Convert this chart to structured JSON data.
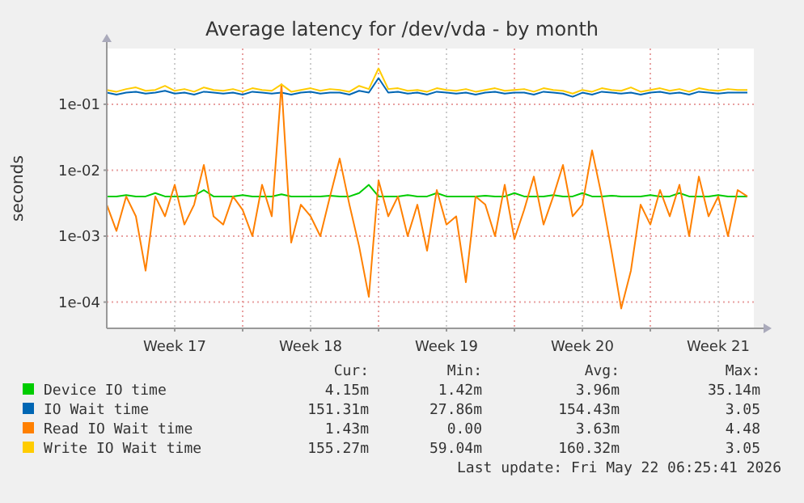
{
  "chart_data": {
    "type": "line",
    "title": "Average latency for /dev/vda - by month",
    "ylabel": "seconds",
    "log": "y",
    "grid": true,
    "legend": "bottom",
    "marker": "none",
    "line_style": "solid",
    "xlim": [
      "2026-04-20T00:00",
      "2026-05-23T08:00"
    ],
    "xticks": [
      {
        "value": "2026-04-23T12:00",
        "label": "Week 17"
      },
      {
        "value": "2026-04-27T00:00",
        "label": null
      },
      {
        "value": "2026-04-30T12:00",
        "label": "Week 18"
      },
      {
        "value": "2026-05-04T00:00",
        "label": null
      },
      {
        "value": "2026-05-07T12:00",
        "label": "Week 19"
      },
      {
        "value": "2026-05-11T00:00",
        "label": null
      },
      {
        "value": "2026-05-14T12:00",
        "label": "Week 20"
      },
      {
        "value": "2026-05-18T00:00",
        "label": null
      },
      {
        "value": "2026-05-21T12:00",
        "label": "Week 21"
      }
    ],
    "ylim": [
      4e-05,
      0.7
    ],
    "yticks": [
      {
        "value": 0.1,
        "label": "1e-01"
      },
      {
        "value": 0.01,
        "label": "1e-02"
      },
      {
        "value": 0.001,
        "label": "1e-03"
      },
      {
        "value": 0.0001,
        "label": "1e-04"
      }
    ],
    "x": [
      "2026-04-20T00:00",
      "2026-04-20T12:00",
      "2026-04-21T00:00",
      "2026-04-21T12:00",
      "2026-04-22T00:00",
      "2026-04-22T12:00",
      "2026-04-23T00:00",
      "2026-04-23T12:00",
      "2026-04-24T00:00",
      "2026-04-24T12:00",
      "2026-04-25T00:00",
      "2026-04-25T12:00",
      "2026-04-26T00:00",
      "2026-04-26T12:00",
      "2026-04-27T00:00",
      "2026-04-27T12:00",
      "2026-04-28T00:00",
      "2026-04-28T12:00",
      "2026-04-29T00:00",
      "2026-04-29T12:00",
      "2026-04-30T00:00",
      "2026-04-30T12:00",
      "2026-05-01T00:00",
      "2026-05-01T12:00",
      "2026-05-02T00:00",
      "2026-05-02T12:00",
      "2026-05-03T00:00",
      "2026-05-03T12:00",
      "2026-05-04T00:00",
      "2026-05-04T12:00",
      "2026-05-05T00:00",
      "2026-05-05T12:00",
      "2026-05-06T00:00",
      "2026-05-06T12:00",
      "2026-05-07T00:00",
      "2026-05-07T12:00",
      "2026-05-08T00:00",
      "2026-05-08T12:00",
      "2026-05-09T00:00",
      "2026-05-09T12:00",
      "2026-05-10T00:00",
      "2026-05-10T12:00",
      "2026-05-11T00:00",
      "2026-05-11T12:00",
      "2026-05-12T00:00",
      "2026-05-12T12:00",
      "2026-05-13T00:00",
      "2026-05-13T12:00",
      "2026-05-14T00:00",
      "2026-05-14T12:00",
      "2026-05-15T00:00",
      "2026-05-15T12:00",
      "2026-05-16T00:00",
      "2026-05-16T12:00",
      "2026-05-17T00:00",
      "2026-05-17T12:00",
      "2026-05-18T00:00",
      "2026-05-18T12:00",
      "2026-05-19T00:00",
      "2026-05-19T12:00",
      "2026-05-20T00:00",
      "2026-05-20T12:00",
      "2026-05-21T00:00",
      "2026-05-21T12:00",
      "2026-05-22T00:00",
      "2026-05-22T12:00",
      "2026-05-23T00:00"
    ],
    "series": [
      {
        "name": "Device IO time",
        "color": "#00cc00",
        "values": [
          0.004,
          0.004,
          0.0042,
          0.004,
          0.004,
          0.0045,
          0.004,
          0.004,
          0.004,
          0.0041,
          0.005,
          0.004,
          0.004,
          0.004,
          0.0042,
          0.004,
          0.004,
          0.004,
          0.0043,
          0.004,
          0.004,
          0.004,
          0.004,
          0.0041,
          0.004,
          0.004,
          0.0045,
          0.006,
          0.004,
          0.004,
          0.004,
          0.0042,
          0.004,
          0.004,
          0.0045,
          0.004,
          0.004,
          0.004,
          0.004,
          0.0041,
          0.004,
          0.004,
          0.0045,
          0.004,
          0.004,
          0.004,
          0.0042,
          0.004,
          0.004,
          0.0045,
          0.004,
          0.004,
          0.0041,
          0.004,
          0.004,
          0.004,
          0.0042,
          0.004,
          0.004,
          0.0045,
          0.004,
          0.004,
          0.004,
          0.0042,
          0.004,
          0.004,
          0.004
        ]
      },
      {
        "name": "IO Wait time",
        "color": "#0066b3",
        "values": [
          0.15,
          0.14,
          0.15,
          0.155,
          0.145,
          0.15,
          0.16,
          0.145,
          0.15,
          0.14,
          0.155,
          0.15,
          0.145,
          0.15,
          0.14,
          0.155,
          0.15,
          0.145,
          0.15,
          0.14,
          0.15,
          0.155,
          0.145,
          0.15,
          0.15,
          0.14,
          0.16,
          0.15,
          0.25,
          0.15,
          0.155,
          0.145,
          0.15,
          0.14,
          0.155,
          0.15,
          0.145,
          0.15,
          0.14,
          0.15,
          0.155,
          0.145,
          0.15,
          0.15,
          0.14,
          0.155,
          0.15,
          0.145,
          0.13,
          0.15,
          0.14,
          0.155,
          0.15,
          0.145,
          0.15,
          0.14,
          0.15,
          0.155,
          0.145,
          0.15,
          0.14,
          0.155,
          0.15,
          0.145,
          0.15,
          0.15,
          0.15
        ]
      },
      {
        "name": "Read IO Wait time",
        "color": "#ff8000",
        "values": [
          0.003,
          0.0012,
          0.004,
          0.002,
          0.0003,
          0.004,
          0.002,
          0.006,
          0.0015,
          0.003,
          0.012,
          0.002,
          0.0015,
          0.004,
          0.0025,
          0.001,
          0.006,
          0.002,
          0.2,
          0.0008,
          0.003,
          0.002,
          0.001,
          0.004,
          0.015,
          0.003,
          0.0007,
          0.00012,
          0.007,
          0.002,
          0.004,
          0.001,
          0.003,
          0.0006,
          0.005,
          0.0015,
          0.002,
          0.0002,
          0.004,
          0.003,
          0.001,
          0.006,
          0.0009,
          0.0025,
          0.008,
          0.0015,
          0.004,
          0.012,
          0.002,
          0.003,
          0.02,
          0.004,
          0.0006,
          8e-05,
          0.0003,
          0.003,
          0.0015,
          0.005,
          0.002,
          0.006,
          0.001,
          0.008,
          0.002,
          0.004,
          0.001,
          0.005,
          0.004
        ]
      },
      {
        "name": "Write IO Wait time",
        "color": "#ffcc00",
        "values": [
          0.165,
          0.155,
          0.17,
          0.18,
          0.16,
          0.165,
          0.19,
          0.16,
          0.17,
          0.155,
          0.18,
          0.165,
          0.16,
          0.17,
          0.155,
          0.175,
          0.165,
          0.16,
          0.2,
          0.155,
          0.165,
          0.175,
          0.16,
          0.17,
          0.165,
          0.155,
          0.19,
          0.17,
          0.35,
          0.17,
          0.175,
          0.16,
          0.165,
          0.155,
          0.175,
          0.165,
          0.16,
          0.17,
          0.155,
          0.165,
          0.175,
          0.16,
          0.165,
          0.17,
          0.155,
          0.175,
          0.165,
          0.16,
          0.145,
          0.165,
          0.155,
          0.175,
          0.165,
          0.16,
          0.18,
          0.155,
          0.165,
          0.175,
          0.16,
          0.17,
          0.155,
          0.175,
          0.165,
          0.16,
          0.17,
          0.165,
          0.165
        ]
      }
    ],
    "annotations": [
      "Cur:",
      "Min:",
      "Avg:",
      "Max:",
      "4.15m",
      "1.42m",
      "3.96m",
      "35.14m",
      "151.31m",
      "27.86m",
      "154.43m",
      "3.05",
      "1.43m",
      "0.00",
      "3.63m",
      "4.48",
      "155.27m",
      "59.04m",
      "160.32m",
      "3.05",
      "Last update: Fri May 22 06:25:41 2026"
    ]
  }
}
